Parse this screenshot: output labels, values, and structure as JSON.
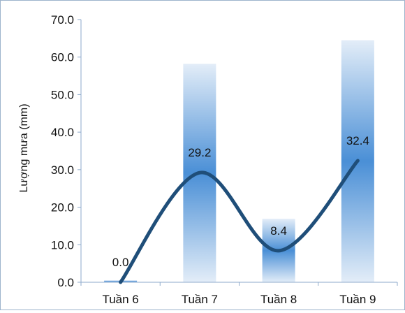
{
  "chart_data": {
    "type": "bar",
    "categories": [
      "Tuần 6",
      "Tuần 7",
      "Tuần 8",
      "Tuần 9"
    ],
    "bar_values": [
      0.5,
      58.2,
      16.9,
      64.5
    ],
    "line_values": [
      0.0,
      29.2,
      8.4,
      32.4
    ],
    "data_labels": [
      "0.0",
      "29.2",
      "8.4",
      "32.4"
    ],
    "ylabel": "Lượng mưa (mm)",
    "ylim": [
      0,
      70
    ],
    "yticks": [
      "0.0",
      "10.0",
      "20.0",
      "30.0",
      "40.0",
      "50.0",
      "60.0",
      "70.0"
    ],
    "grid": false,
    "line_style": "smooth",
    "colors": {
      "line": "#1f4e79",
      "bar_edge": "#e3edf8",
      "bar_center": "#4a8fd6",
      "axis": "#8eaacb",
      "frame": "#9db4cc"
    }
  }
}
